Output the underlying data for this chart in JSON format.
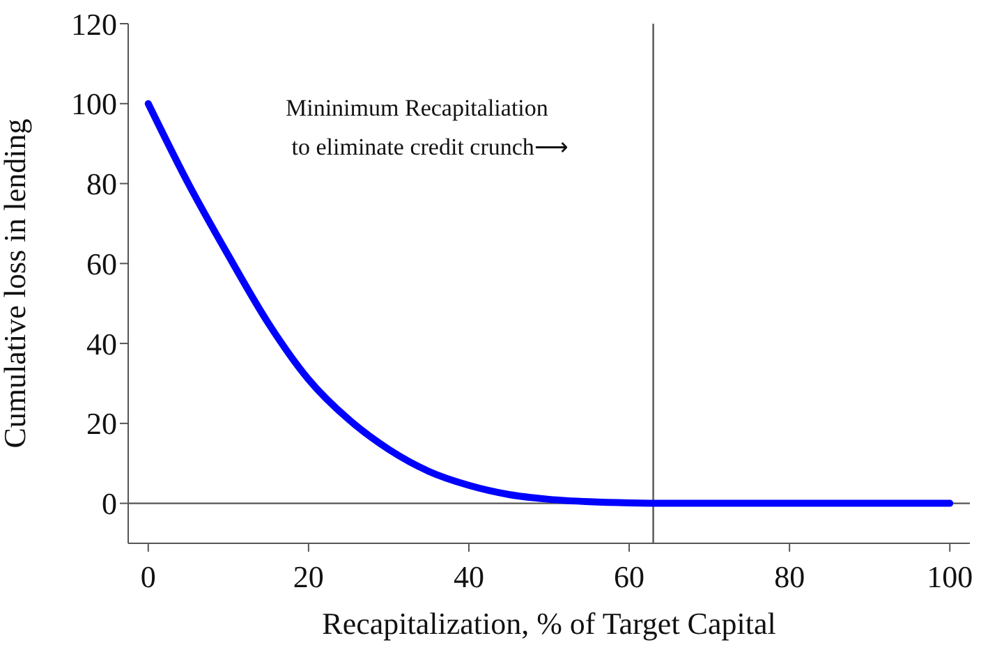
{
  "chart_data": {
    "type": "line",
    "xlabel": "Recapitalization, % of Target Capital",
    "ylabel": "Cumulative loss in lending",
    "x": [
      0,
      5,
      10,
      15,
      20,
      25,
      30,
      35,
      40,
      45,
      50,
      55,
      60,
      65,
      100
    ],
    "series": [
      {
        "color": "#0000ff",
        "values": [
          100,
          80,
          62,
          45,
          31,
          21,
          13.5,
          8,
          4.5,
          2.2,
          1,
          0.4,
          0.1,
          0,
          0
        ]
      }
    ],
    "annotations": [
      "Mininimum Recapitaliation\n to eliminate credit crunch⟶"
    ],
    "xlim": [
      -2.5,
      102.5
    ],
    "xticks": [
      0,
      20,
      40,
      60,
      80,
      100
    ],
    "ylim": [
      -10,
      120
    ],
    "yticks": [
      0,
      20,
      40,
      60,
      80,
      100,
      120
    ],
    "ref_lines": [
      {
        "axis": "x",
        "value": 63,
        "color": "#555555"
      },
      {
        "axis": "y",
        "value": 0,
        "color": "#555555"
      }
    ],
    "grid": false,
    "legend": false,
    "marker": "none",
    "line_style": "solid"
  }
}
